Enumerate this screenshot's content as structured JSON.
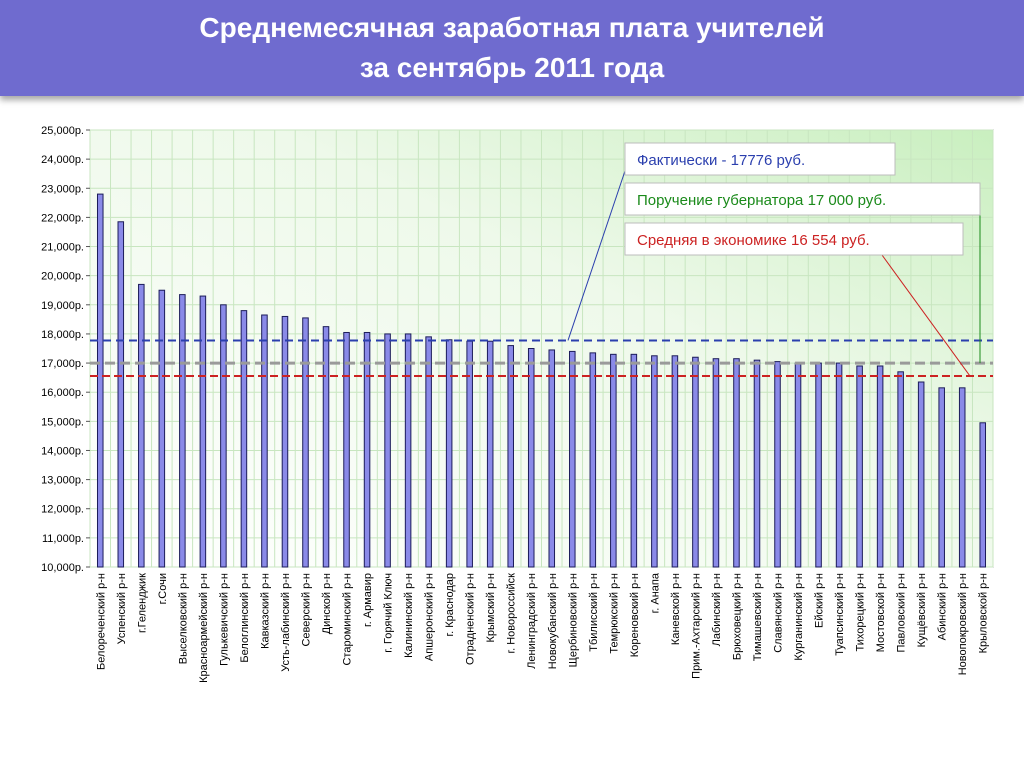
{
  "title": {
    "line1": "Среднемесячная заработная плата учителей",
    "line2": "за сентябрь 2011 года"
  },
  "colors": {
    "banner": "#6f6bcf",
    "bar": "#8a8ae8",
    "actual_line": "#2b3fae",
    "governor_line": "#9a9a9a",
    "economy_line": "#cc2222"
  },
  "chart_data": {
    "type": "bar",
    "ylim": [
      10000,
      25000
    ],
    "ytick_labels": [
      "10,000р.",
      "11,000р.",
      "12,000р.",
      "13,000р.",
      "14,000р.",
      "15,000р.",
      "16,000р.",
      "17,000р.",
      "18,000р.",
      "19,000р.",
      "20,000р.",
      "21,000р.",
      "22,000р.",
      "23,000р.",
      "24,000р.",
      "25,000р."
    ],
    "grid": true,
    "categories": [
      "Белореченский р-н",
      "Успенский р-н",
      "г.Геленджик",
      "г.Сочи",
      "Выселковский р-н",
      "Красноармейский р-н",
      "Гулькевичский р-н",
      "Белоглинский р-н",
      "Кавказский р-н",
      "Усть-лабинский р-н",
      "Северский р-н",
      "Динской р-н",
      "Староминский р-н",
      "г. Армавир",
      "г. Горячий Ключ",
      "Калининский р-н",
      "Апшеронский р-н",
      "г. Краснодар",
      "Отрадненский р-н",
      "Крымский р-н",
      "г. Новороссийск",
      "Ленинградский р-н",
      "Новокубанский р-н",
      "Щербиновский р-н",
      "Тбилисский р-н",
      "Темрюкский р-н",
      "Кореновский р-н",
      "г. Анапа",
      "Каневской р-н",
      "Прим.-Ахтарский р-н",
      "Лабинский р-н",
      "Брюховецкий р-н",
      "Тимашевский р-н",
      "Славянский р-н",
      "Курганинский р-н",
      "Ейский р-н",
      "Туапсинский р-н",
      "Тихорецкий р-н",
      "Мостовской р-н",
      "Павловский р-н",
      "Кущёвский р-н",
      "Абинский р-н",
      "Новопокровский р-н",
      "Крыловской р-н"
    ],
    "values": [
      22800,
      21850,
      19700,
      19500,
      19350,
      19300,
      19000,
      18800,
      18650,
      18600,
      18550,
      18250,
      18050,
      18050,
      18000,
      18000,
      17900,
      17800,
      17750,
      17750,
      17600,
      17500,
      17450,
      17400,
      17350,
      17300,
      17300,
      17250,
      17250,
      17200,
      17150,
      17150,
      17100,
      17050,
      17000,
      17000,
      17000,
      16900,
      16900,
      16700,
      16350,
      16150,
      16150,
      14950
    ],
    "reference_lines": [
      {
        "label": "Фактически  - 17776 руб.",
        "value": 17776,
        "color": "#2b3fae",
        "text_color": "#2b3fae"
      },
      {
        "label": "Поручение губернатора 17 000 руб.",
        "value": 17000,
        "color": "#9a9a9a",
        "text_color": "#1a8a1a"
      },
      {
        "label": "Средняя в экономике 16 554 руб.",
        "value": 16554,
        "color": "#cc2222",
        "text_color": "#cc2222"
      }
    ]
  }
}
